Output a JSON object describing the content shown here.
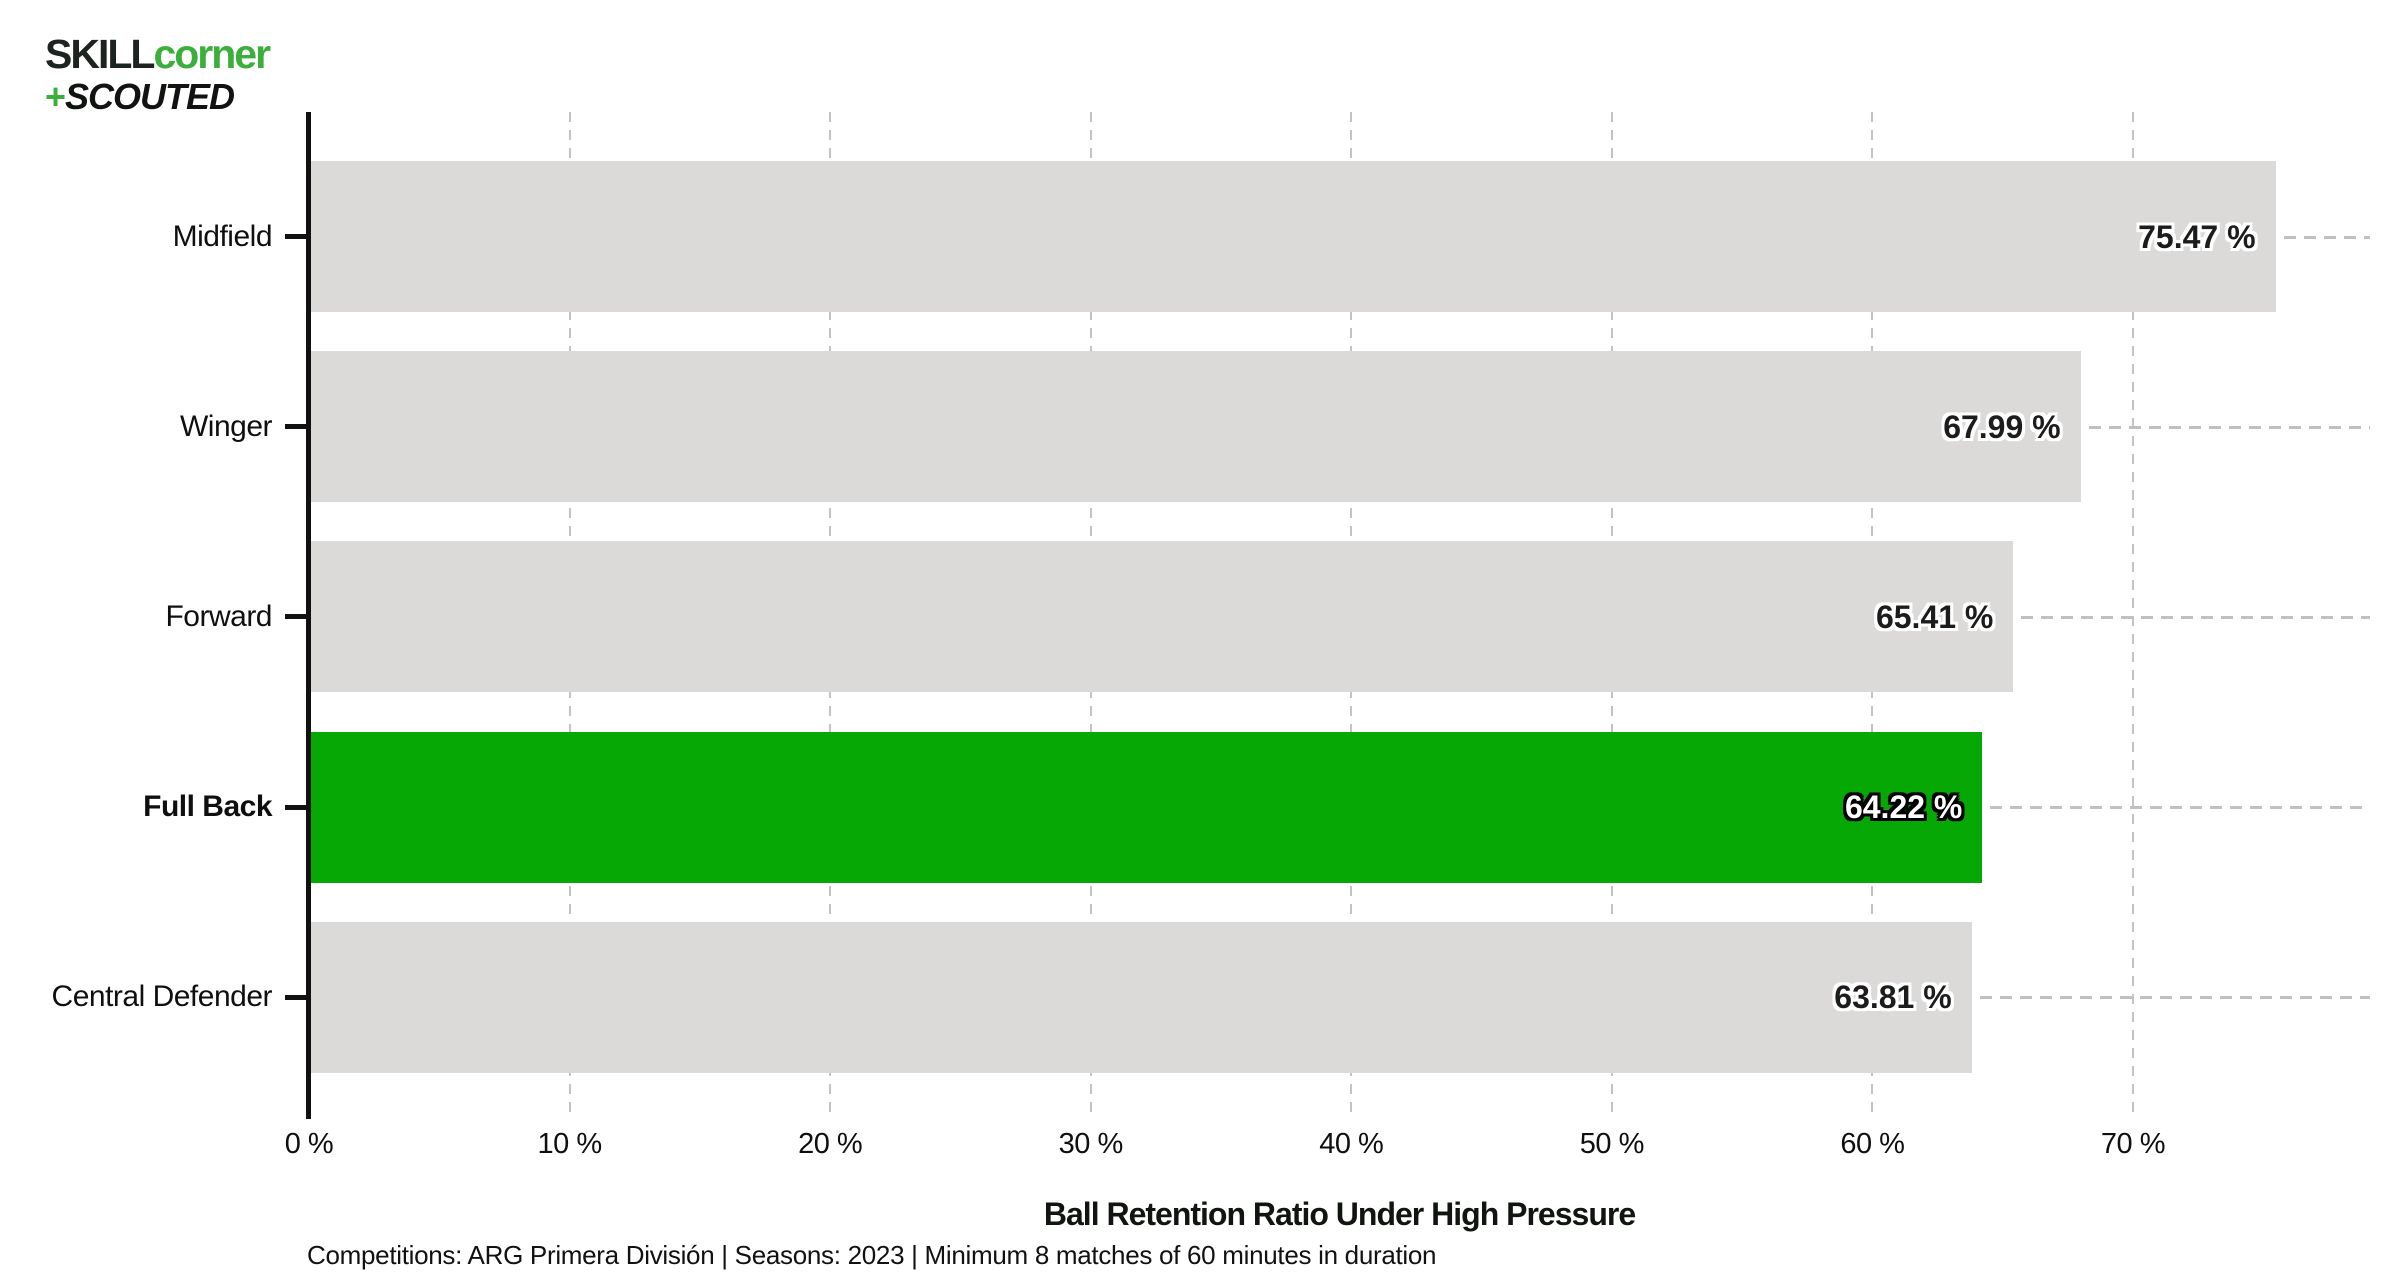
{
  "logo": {
    "line1_black": "SKILL",
    "line1_green": "corner",
    "line2_plus": "+",
    "line2_text": "SCOUTED",
    "green_color": "#3cae3c"
  },
  "chart_data": {
    "type": "bar",
    "orientation": "horizontal",
    "xlabel": "Ball Retention Ratio Under High Pressure",
    "ylabel": "",
    "categories": [
      "Midfield",
      "Winger",
      "Forward",
      "Full Back",
      "Central Defender"
    ],
    "values": [
      75.47,
      67.99,
      65.41,
      64.22,
      63.81
    ],
    "value_labels": [
      "75.47 %",
      "67.99 %",
      "65.41 %",
      "64.22 %",
      "63.81 %"
    ],
    "highlighted_category": "Full Back",
    "x_ticks": [
      0,
      10,
      20,
      30,
      40,
      50,
      60,
      70
    ],
    "x_tick_labels": [
      "0 %",
      "10 %",
      "20 %",
      "30 %",
      "40 %",
      "50 %",
      "60 %",
      "70 %"
    ],
    "xlim": [
      0,
      79
    ],
    "grid": "vertical-dashed",
    "legend": "none",
    "bar_color_default": "#dbdad9",
    "bar_color_highlight": "#05a805",
    "value_text_color_default": "#1c1c1c",
    "value_text_color_highlight": "#ffffff"
  },
  "footnote": "Competitions: ARG Primera División | Seasons: 2023 | Minimum 8 matches of 60 minutes in duration"
}
